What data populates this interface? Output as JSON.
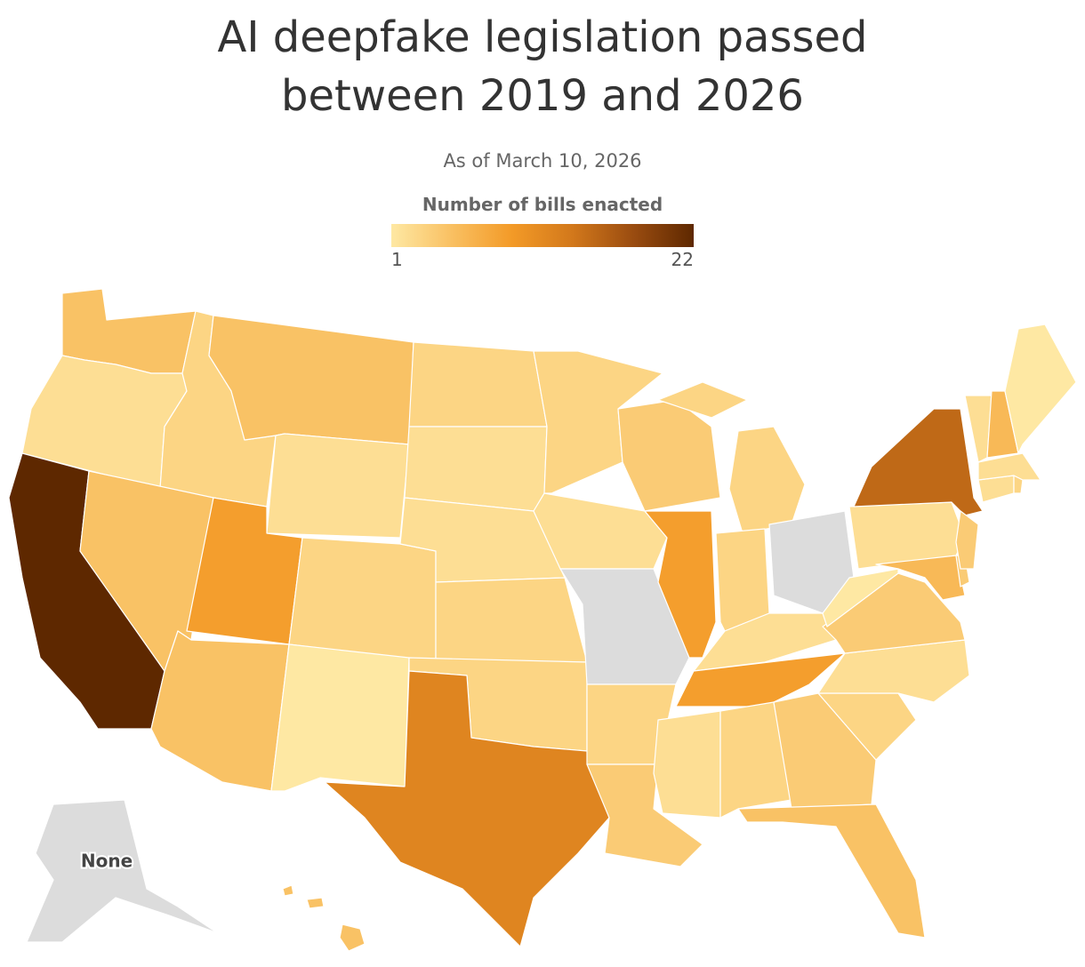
{
  "chart_data": {
    "type": "choropleth",
    "title": "AI deepfake legislation passed between 2019 and 2026",
    "subtitle": "As of March 10, 2026",
    "colorbar": {
      "title": "Number of bills enacted",
      "range": [
        1,
        22
      ],
      "ticks": [
        1,
        22
      ],
      "colors": [
        "#fee8a3",
        "#f9c062",
        "#f39a27",
        "#d2781b",
        "#9a4c10",
        "#5e2800"
      ]
    },
    "missing_color": "#dcdcdc",
    "no_data_label": "None",
    "values": [
      5,
      2,
      22,
      3,
      5,
      5,
      2,
      9,
      5,
      3,
      1,
      3,
      2,
      2,
      3,
      3,
      12,
      3,
      2,
      null,
      3,
      4,
      4,
      9,
      3,
      3,
      null,
      2,
      9,
      2,
      3,
      4,
      5,
      3,
      2,
      4,
      1,
      2,
      15,
      6,
      4,
      4,
      2,
      3,
      2,
      2,
      6,
      1,
      null,
      5
    ]
  }
}
